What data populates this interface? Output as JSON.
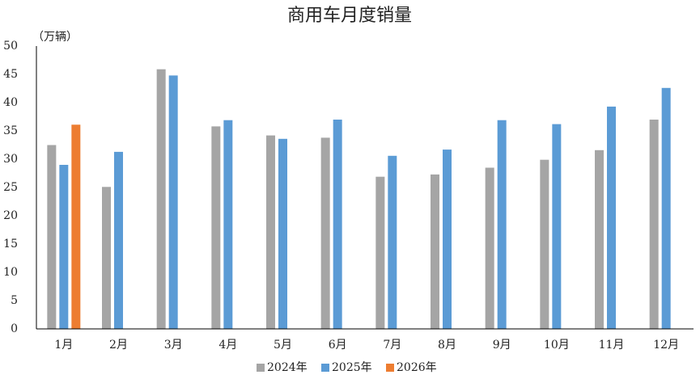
{
  "chart_data": {
    "type": "bar",
    "title": "商用车月度销量",
    "y_label": "（万辆）",
    "categories": [
      "1月",
      "2月",
      "3月",
      "4月",
      "5月",
      "6月",
      "7月",
      "8月",
      "9月",
      "10月",
      "11月",
      "12月"
    ],
    "series": [
      {
        "name": "2024年",
        "color": "#a5a5a5",
        "values": [
          32.5,
          25.1,
          45.9,
          35.8,
          34.2,
          33.8,
          26.9,
          27.3,
          28.5,
          29.9,
          31.6,
          37.0
        ]
      },
      {
        "name": "2025年",
        "color": "#5b9bd5",
        "values": [
          29.0,
          31.3,
          44.8,
          36.9,
          33.6,
          37.0,
          30.6,
          31.7,
          36.9,
          36.2,
          39.3,
          42.6
        ]
      },
      {
        "name": "2026年",
        "color": "#ed7d31",
        "values": [
          36.1,
          null,
          null,
          null,
          null,
          null,
          null,
          null,
          null,
          null,
          null,
          null
        ]
      }
    ],
    "ylim": [
      0,
      50
    ],
    "yticks": [
      0,
      5,
      10,
      15,
      20,
      25,
      30,
      35,
      40,
      45,
      50
    ],
    "grid": false,
    "legend": "bottom"
  }
}
